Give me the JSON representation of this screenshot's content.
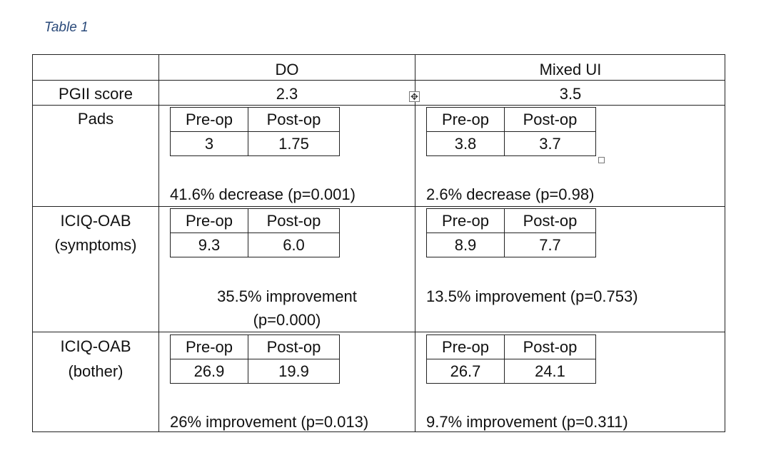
{
  "caption": "Table 1",
  "headers": {
    "do": "DO",
    "mixed": "Mixed UI"
  },
  "pgii": {
    "label": "PGII score",
    "do": "2.3",
    "mixed": "3.5"
  },
  "pads": {
    "label": "Pads",
    "do": {
      "pre_label": "Pre-op",
      "post_label": "Post-op",
      "pre": "3",
      "post": "1.75",
      "result": "41.6% decrease (p=0.001)"
    },
    "mixed": {
      "pre_label": "Pre-op",
      "post_label": "Post-op",
      "pre": "3.8",
      "post": "3.7",
      "result": "2.6% decrease (p=0.98)"
    }
  },
  "symptoms": {
    "label_line1": "ICIQ-OAB",
    "label_line2": "(symptoms)",
    "do": {
      "pre_label": "Pre-op",
      "post_label": "Post-op",
      "pre": "9.3",
      "post": "6.0",
      "result_line1": "35.5% improvement",
      "result_line2": "(p=0.000)"
    },
    "mixed": {
      "pre_label": "Pre-op",
      "post_label": "Post-op",
      "pre": "8.9",
      "post": "7.7",
      "result": "13.5% improvement (p=0.753)"
    }
  },
  "bother": {
    "label_line1": "ICIQ-OAB",
    "label_line2": "(bother)",
    "do": {
      "pre_label": "Pre-op",
      "post_label": "Post-op",
      "pre": "26.9",
      "post": "19.9",
      "result": "26% improvement (p=0.013)"
    },
    "mixed": {
      "pre_label": "Pre-op",
      "post_label": "Post-op",
      "pre": "26.7",
      "post": "24.1",
      "result": "9.7% improvement (p=0.311)"
    }
  },
  "icons": {
    "table_move": "move-arrows-icon",
    "table_resize": "resize-square-icon"
  }
}
